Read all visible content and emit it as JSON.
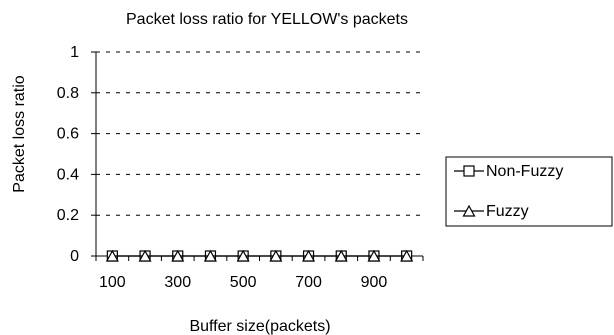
{
  "chart_data": {
    "type": "line",
    "title": "Packet loss ratio for YELLOW's packets",
    "xlabel": "Buffer size(packets)",
    "ylabel": "Packet loss ratio",
    "x": [
      100,
      200,
      300,
      400,
      500,
      600,
      700,
      800,
      900,
      1000
    ],
    "x_tick_labels": [
      "100",
      "300",
      "500",
      "700",
      "900"
    ],
    "y_tick_labels": [
      "0",
      "0.2",
      "0.4",
      "0.6",
      "0.8",
      "1"
    ],
    "ylim": [
      0,
      1
    ],
    "grid": "horizontal dashed",
    "legend_position": "right",
    "series": [
      {
        "name": "Non-Fuzzy",
        "marker": "square",
        "color": "#000000",
        "values": [
          0,
          0,
          0,
          0,
          0,
          0,
          0,
          0,
          0,
          0
        ]
      },
      {
        "name": "Fuzzy",
        "marker": "triangle",
        "color": "#000000",
        "values": [
          0,
          0,
          0,
          0,
          0,
          0,
          0,
          0,
          0,
          0
        ]
      }
    ]
  }
}
